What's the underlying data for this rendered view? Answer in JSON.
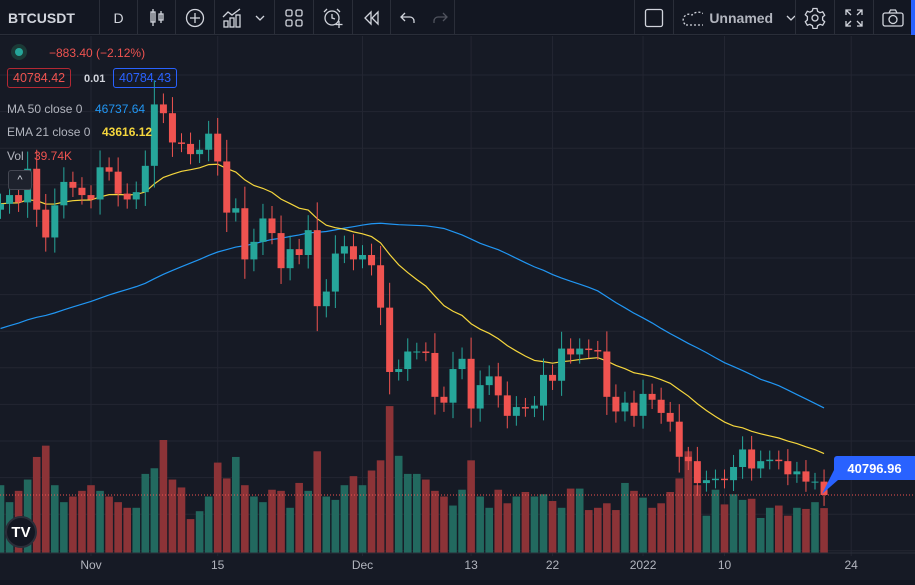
{
  "toolbar": {
    "symbol": "BTCUSDT",
    "interval": "D",
    "layout_name": "Unnamed",
    "icons": [
      "candles-icon",
      "add-indicator-icon",
      "indicators-icon",
      "chevron-down-icon",
      "layouts-icon",
      "alert-icon",
      "replay-icon",
      "undo-icon",
      "redo-icon",
      "square-icon",
      "cloud-icon",
      "gear-icon",
      "fullscreen-icon",
      "camera-icon"
    ]
  },
  "legend": {
    "change": "−883.40 (−2.12%)",
    "bid": "40784.42",
    "spread": "0.01",
    "ask": "40784.43",
    "ma_label": "MA 50 close 0",
    "ma_value": "46737.64",
    "ema_label": "EMA 21 close 0",
    "ema_value": "43616.12",
    "vol_label": "Vol",
    "vol_value": "39.74K",
    "collapse_icon": "^"
  },
  "last_price": "40796.96",
  "colors": {
    "up": "#26a69a",
    "down": "#ef5350",
    "ma": "#2196f3",
    "ema": "#f5d63d",
    "accent": "#2962ff",
    "background": "#161a25"
  },
  "chart_data": {
    "type": "candlestick",
    "symbol": "BTCUSDT",
    "interval": "D",
    "first_date": "2021-10-22",
    "last_date": "2022-01-21",
    "x_tick_labels": [
      "Nov",
      "15",
      "Dec",
      "13",
      "22",
      "2022",
      "10",
      "24"
    ],
    "closes": [
      60700,
      61300,
      60800,
      63100,
      60300,
      58400,
      60600,
      62200,
      61800,
      61300,
      61000,
      63200,
      62900,
      61400,
      61000,
      61500,
      63300,
      67500,
      66900,
      64900,
      64800,
      64100,
      64400,
      65500,
      63600,
      60100,
      60400,
      56900,
      58100,
      59700,
      58700,
      56300,
      57600,
      57200,
      58900,
      53700,
      54700,
      57300,
      57800,
      56900,
      57200,
      56500,
      53600,
      49200,
      49400,
      50600,
      50600,
      50500,
      47500,
      47100,
      49400,
      50100,
      46700,
      48300,
      48900,
      47600,
      46200,
      46800,
      46700,
      46900,
      49000,
      48600,
      50800,
      50400,
      50800,
      50700,
      50600,
      47500,
      46500,
      47100,
      46200,
      47700,
      47300,
      46400,
      45800,
      43400,
      43100,
      41600,
      41800,
      41900,
      41800,
      42700,
      43900,
      42600,
      43100,
      43200,
      43100,
      42200,
      42400,
      41700,
      41700,
      40785
    ],
    "volumes_k": [
      60,
      45,
      55,
      65,
      85,
      95,
      60,
      45,
      50,
      55,
      60,
      55,
      50,
      45,
      40,
      40,
      70,
      75,
      100,
      65,
      58,
      30,
      37,
      50,
      80,
      66,
      85,
      60,
      50,
      45,
      56,
      55,
      40,
      62,
      55,
      90,
      50,
      47,
      60,
      68,
      60,
      73,
      82,
      130,
      86,
      70,
      70,
      65,
      55,
      50,
      42,
      56,
      82,
      50,
      40,
      56,
      44,
      50,
      54,
      50,
      52,
      46,
      40,
      57,
      57,
      38,
      40,
      44,
      38,
      62,
      55,
      49,
      40,
      44,
      54,
      66,
      90,
      60,
      33,
      56,
      43,
      52,
      47,
      48,
      31,
      40,
      42,
      33,
      40,
      39,
      45,
      39.74
    ],
    "ma_period": 50,
    "ema_period": 21,
    "last_ma": 46737.64,
    "last_ema": 43616.12
  }
}
